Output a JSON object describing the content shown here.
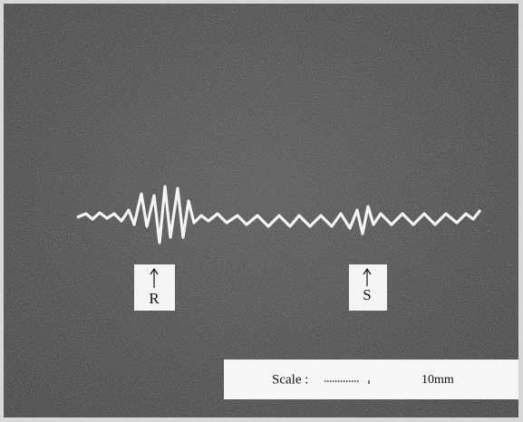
{
  "markers": {
    "r": "R",
    "s": "S"
  },
  "scale": {
    "label": "Scale :",
    "length": "10mm"
  }
}
